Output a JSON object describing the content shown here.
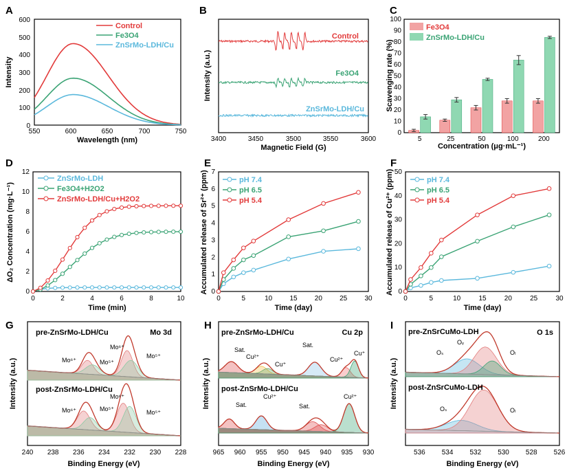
{
  "colors": {
    "red": "#e23a3a",
    "green": "#3aa374",
    "blue": "#5ab8dc",
    "pink": "#f2a3a3",
    "mint": "#8fd8b2",
    "dark": "#333333"
  },
  "chart_data": [
    {
      "panel": "A",
      "type": "line",
      "xlabel": "Wavelength (nm)",
      "ylabel": "Intensity",
      "xlim": [
        550,
        750
      ],
      "ylim": [
        0,
        600
      ],
      "xticks": [
        "550",
        "600",
        "650",
        "700",
        "750"
      ],
      "yticks": [
        "0",
        "100",
        "200",
        "300",
        "400",
        "500",
        "600"
      ],
      "legend": [
        "Control",
        "Fe3O4",
        "ZnSrMo-LDH/Cu"
      ],
      "series": [
        {
          "name": "Control",
          "peak": 462,
          "center": 603
        },
        {
          "name": "Fe3O4",
          "peak": 266,
          "center": 603
        },
        {
          "name": "ZnSrMo-LDH/Cu",
          "peak": 173,
          "center": 603
        }
      ]
    },
    {
      "panel": "B",
      "type": "line",
      "xlabel": "Magnetic Field (G)",
      "ylabel": "Intensity (a.u.)",
      "xlim": [
        3400,
        3600
      ],
      "xticks": [
        "3400",
        "3450",
        "3500",
        "3550",
        "3600"
      ],
      "labels": [
        "Control",
        "Fe3O4",
        "ZnSrMo-LDH/Cu"
      ]
    },
    {
      "panel": "C",
      "type": "bar",
      "xlabel": "Concentration (μg·mL⁻¹)",
      "ylabel": "Scavenging rate (%)",
      "ylim": [
        0,
        100
      ],
      "categories": [
        "5",
        "25",
        "50",
        "100",
        "200"
      ],
      "yticks": [
        "0",
        "10",
        "20",
        "30",
        "40",
        "50",
        "60",
        "70",
        "80",
        "90",
        "100"
      ],
      "series": [
        {
          "name": "Fe3O4",
          "values": [
            2,
            11,
            22,
            28,
            28
          ],
          "errors": [
            1,
            1,
            2,
            2,
            2
          ]
        },
        {
          "name": "ZnSrMo-LDH/Cu",
          "values": [
            14,
            29,
            47,
            64,
            84
          ],
          "errors": [
            2,
            2,
            1,
            4,
            1
          ]
        }
      ]
    },
    {
      "panel": "D",
      "type": "line",
      "xlabel": "Time (min)",
      "ylabel": "ΔO₂ Concentration (mg·L⁻¹)",
      "xlim": [
        0,
        10
      ],
      "ylim": [
        0,
        12
      ],
      "xticks": [
        "0",
        "2",
        "4",
        "6",
        "8",
        "10"
      ],
      "yticks": [
        "0",
        "2",
        "4",
        "6",
        "8",
        "10",
        "12"
      ],
      "legend": [
        "ZnSrMo-LDH",
        "Fe3O4+H2O2",
        "ZnSrMo-LDH/Cu+H2O2"
      ],
      "series": [
        {
          "name": "ZnSrMo-LDH",
          "plateau": 0.4
        },
        {
          "name": "Fe3O4+H2O2",
          "plateau": 6.0
        },
        {
          "name": "ZnSrMo-LDH/Cu+H2O2",
          "plateau": 8.6
        }
      ]
    },
    {
      "panel": "E",
      "type": "line",
      "xlabel": "Time (day)",
      "ylabel": "Accumulated release of Sr²⁺ (ppm)",
      "xlim": [
        0,
        30
      ],
      "ylim": [
        0,
        7
      ],
      "xticks": [
        "0",
        "5",
        "10",
        "15",
        "20",
        "25",
        "30"
      ],
      "yticks": [
        "0",
        "1",
        "2",
        "3",
        "4",
        "5",
        "6",
        "7"
      ],
      "x": [
        0,
        1,
        3,
        5,
        7,
        14,
        21,
        28
      ],
      "series": [
        {
          "name": "pH 7.4",
          "values": [
            0,
            0.45,
            0.85,
            1.1,
            1.25,
            1.9,
            2.35,
            2.5
          ]
        },
        {
          "name": "pH 6.5",
          "values": [
            0,
            0.7,
            1.35,
            1.85,
            2.1,
            3.2,
            3.55,
            4.1
          ]
        },
        {
          "name": "pH 5.4",
          "values": [
            0,
            1.1,
            1.85,
            2.55,
            2.95,
            4.2,
            5.15,
            5.8
          ]
        }
      ]
    },
    {
      "panel": "F",
      "type": "line",
      "xlabel": "Time (day)",
      "ylabel": "Accumulated release of Cu²⁺ (ppm)",
      "xlim": [
        0,
        30
      ],
      "ylim": [
        0,
        50
      ],
      "xticks": [
        "0",
        "5",
        "10",
        "15",
        "20",
        "25",
        "30"
      ],
      "yticks": [
        "0",
        "10",
        "20",
        "30",
        "40",
        "50"
      ],
      "x": [
        0,
        1,
        3,
        5,
        7,
        14,
        21,
        28
      ],
      "series": [
        {
          "name": "pH 7.4",
          "values": [
            0,
            1.5,
            2.5,
            3.8,
            4.6,
            5.5,
            8,
            10.6
          ]
        },
        {
          "name": "pH 6.5",
          "values": [
            0,
            3,
            6.5,
            10,
            14.5,
            21,
            27,
            32
          ]
        },
        {
          "name": "pH 5.4",
          "values": [
            0,
            5,
            10,
            16,
            21.5,
            32,
            40,
            43
          ]
        }
      ]
    },
    {
      "panel": "G",
      "type": "line",
      "xlabel": "Binding Energy (eV)",
      "ylabel": "Intensity (a.u.)",
      "element": "Mo 3d",
      "xlim": [
        240,
        228
      ],
      "xticks": [
        "240",
        "238",
        "236",
        "234",
        "232",
        "230",
        "228"
      ],
      "samples": [
        "pre-ZnSrMo-LDH/Cu",
        "post-ZnSrMo-LDH/Cu"
      ],
      "peaks": [
        "Mo⁶⁺",
        "Mo⁵⁺",
        "Mo⁶⁺",
        "Mo⁵⁺"
      ]
    },
    {
      "panel": "H",
      "type": "line",
      "xlabel": "Binding Energy (eV)",
      "ylabel": "Intensity (a.u.)",
      "element": "Cu 2p",
      "xlim": [
        965,
        930
      ],
      "xticks": [
        "965",
        "960",
        "955",
        "950",
        "945",
        "940",
        "935",
        "930"
      ],
      "samples": [
        "pre-ZnSrMo-LDH/Cu",
        "post-ZnSrMo-LDH/Cu"
      ],
      "peaks": [
        "Sat.",
        "Cu²⁺",
        "Cu⁺",
        "Sat.",
        "Cu²⁺",
        "Cu⁺"
      ]
    },
    {
      "panel": "I",
      "type": "line",
      "xlabel": "Binding Energy (eV)",
      "ylabel": "Intensity (a.u.)",
      "element": "O 1s",
      "xlim": [
        537,
        526
      ],
      "xticks": [
        "536",
        "534",
        "532",
        "530",
        "528",
        "526"
      ],
      "samples": [
        "pre-ZnSrCuMo-LDH",
        "post-ZnSrCuMo-LDH"
      ],
      "peaks": [
        "Oₛ",
        "Oᵥ",
        "Oₗ"
      ]
    }
  ]
}
